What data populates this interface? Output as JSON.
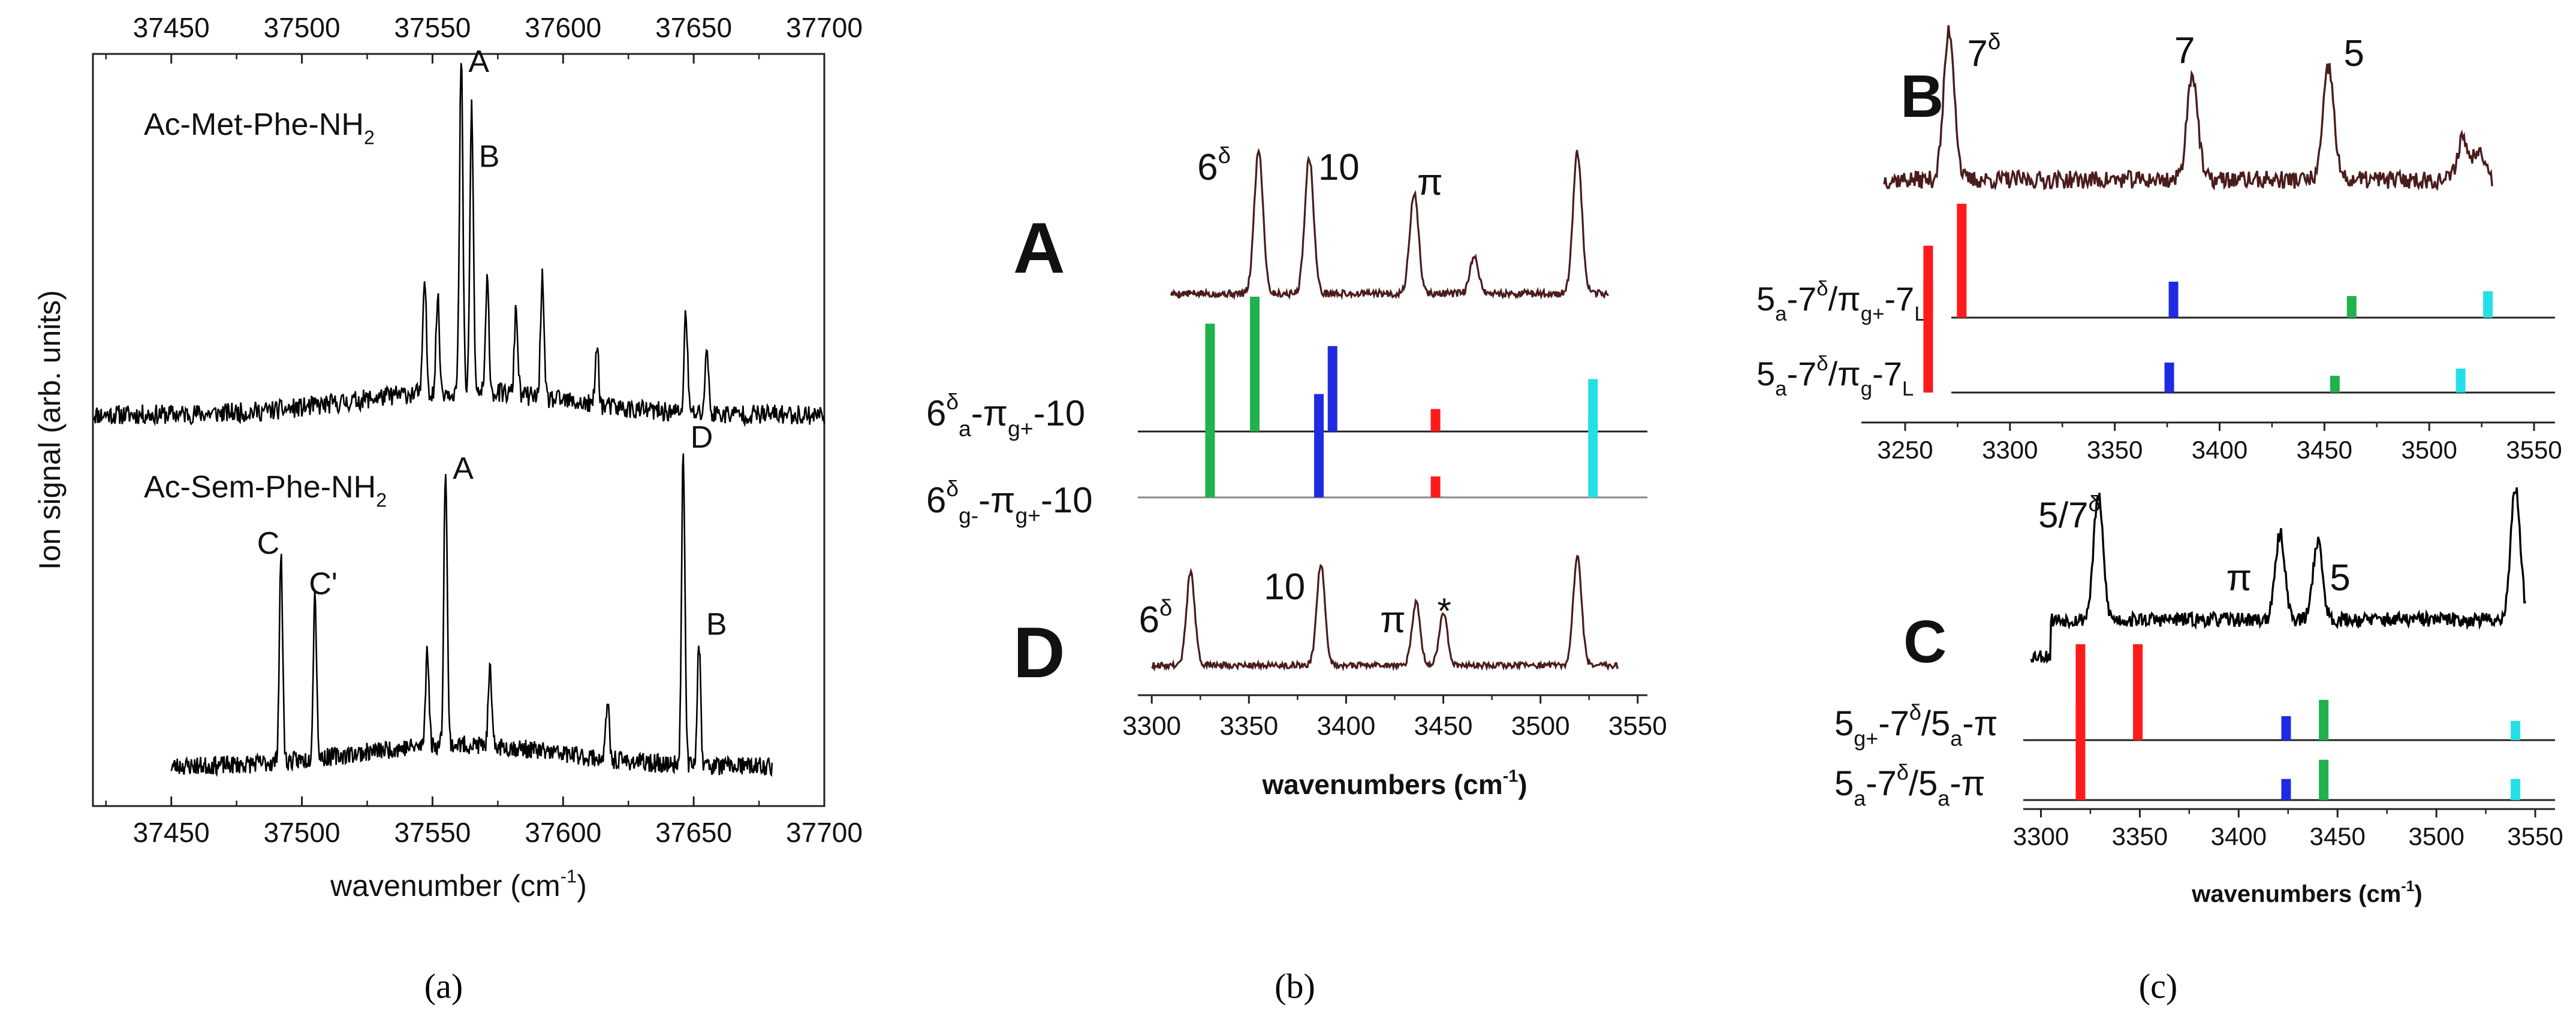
{
  "chart_data": [
    {
      "panel": "a",
      "type": "line",
      "caption": "(a)",
      "xlabel": "wavenumber  (cm-1)",
      "xlabel_parts": [
        "wavenumber  (cm",
        "-1",
        ")"
      ],
      "ylabel": "Ion signal  (arb. units)",
      "xlim": [
        37420,
        37700
      ],
      "xticks": [
        37450,
        37500,
        37550,
        37600,
        37650,
        37700
      ],
      "xtick_labels": [
        "37450",
        "37500",
        "37550",
        "37600",
        "37650",
        "37700"
      ],
      "top_axis_ticks": [
        37450,
        37500,
        37550,
        37600,
        37650,
        37700
      ],
      "top_axis_labels": [
        "37450",
        "37500",
        "37550",
        "37600",
        "37650",
        "37700"
      ],
      "series": [
        {
          "name": "Ac-Met-Phe-NH2",
          "label_parts": [
            "Ac-Met-Phe-NH",
            "2"
          ],
          "x_range": [
            37420,
            37700
          ],
          "baseline": 0.05,
          "peaks": [
            {
              "x": 37547,
              "y": 0.34
            },
            {
              "x": 37552,
              "y": 0.28
            },
            {
              "x": 37561,
              "y": 1.0,
              "label": "A"
            },
            {
              "x": 37565,
              "y": 0.86,
              "label": "B"
            },
            {
              "x": 37571,
              "y": 0.33
            },
            {
              "x": 37582,
              "y": 0.26
            },
            {
              "x": 37592,
              "y": 0.36
            },
            {
              "x": 37613,
              "y": 0.18
            },
            {
              "x": 37647,
              "y": 0.3
            },
            {
              "x": 37655,
              "y": 0.2
            }
          ]
        },
        {
          "name": "Ac-Sem-Phe-NH2",
          "label_parts": [
            "Ac-Sem-Phe-NH",
            "2"
          ],
          "x_range": [
            37450,
            37680
          ],
          "baseline": 0.04,
          "peaks": [
            {
              "x": 37492,
              "y": 0.66,
              "label": "C"
            },
            {
              "x": 37505,
              "y": 0.53,
              "label": "C'"
            },
            {
              "x": 37548,
              "y": 0.32
            },
            {
              "x": 37555,
              "y": 0.9,
              "label": "A"
            },
            {
              "x": 37572,
              "y": 0.24
            },
            {
              "x": 37617,
              "y": 0.18
            },
            {
              "x": 37646,
              "y": 1.0,
              "label": "D"
            },
            {
              "x": 37652,
              "y": 0.4,
              "label": "B"
            }
          ]
        }
      ]
    },
    {
      "panel": "b",
      "type": "line+stick",
      "caption": "(b)",
      "xlabel": "wavenumbers (cm-1)",
      "xlabel_parts": [
        "wavenumbers (cm",
        "-1",
        ")"
      ],
      "xlim": [
        3295,
        3555
      ],
      "xticks": [
        3300,
        3350,
        3400,
        3450,
        3500,
        3550
      ],
      "xtick_labels": [
        "3300",
        "3350",
        "3400",
        "3450",
        "3500",
        "3550"
      ],
      "spectra": [
        {
          "name": "A",
          "x_range": [
            3310,
            3535
          ],
          "peaks": [
            {
              "x": 3355,
              "y": 1.0,
              "label": "6",
              "sup": "δ"
            },
            {
              "x": 3381,
              "y": 0.95,
              "label": "10"
            },
            {
              "x": 3435,
              "y": 0.7,
              "label": "π"
            },
            {
              "x": 3466,
              "y": 0.25
            },
            {
              "x": 3519,
              "y": 0.98
            }
          ]
        },
        {
          "name": "D",
          "x_range": [
            3300,
            3540
          ],
          "peaks": [
            {
              "x": 3320,
              "y": 0.78,
              "label": "6",
              "sup": "δ"
            },
            {
              "x": 3387,
              "y": 0.85,
              "label": "10"
            },
            {
              "x": 3436,
              "y": 0.52,
              "label": "π"
            },
            {
              "x": 3450,
              "y": 0.44,
              "label": "*"
            },
            {
              "x": 3519,
              "y": 0.92
            }
          ]
        }
      ],
      "sticks": [
        {
          "name": "6δa-πg+-10",
          "label": {
            "p1": "6",
            "sup": "δ",
            "sub": "a",
            "p2": "-π",
            "sub2": "g+",
            "p3": "-10"
          },
          "lines": [
            {
              "x": 3330,
              "h": 0.72,
              "color": "#22b14c"
            },
            {
              "x": 3353,
              "h": 0.9,
              "color": "#22b14c"
            },
            {
              "x": 3393,
              "h": 0.57,
              "color": "#1f2be0"
            },
            {
              "x": 3386,
              "h": 0.25,
              "color": "#1f2be0"
            },
            {
              "x": 3446,
              "h": 0.15,
              "color": "#ff1a1a"
            },
            {
              "x": 3527,
              "h": 0.35,
              "color": "#24e0e6"
            }
          ]
        },
        {
          "name": "6δg-πg+-10",
          "label": {
            "p1": "6",
            "sup": "δ",
            "sub": "g-",
            "p2": "-π",
            "sub2": "g+",
            "p3": "-10"
          },
          "lines": [
            {
              "x": 3330,
              "h": 0.5,
              "color": "#22b14c"
            },
            {
              "x": 3386,
              "h": 0.5,
              "color": "#1f2be0"
            },
            {
              "x": 3446,
              "h": 0.14,
              "color": "#ff1a1a"
            },
            {
              "x": 3527,
              "h": 0.5,
              "color": "#24e0e6"
            }
          ]
        }
      ]
    },
    {
      "panel": "c",
      "type": "line+stick",
      "caption": "(c)",
      "subplots": [
        {
          "name": "B",
          "xlim": [
            3230,
            3560
          ],
          "xticks": [
            3250,
            3300,
            3350,
            3400,
            3450,
            3500,
            3550
          ],
          "xtick_labels": [
            "3250",
            "3300",
            "3350",
            "3400",
            "3450",
            "3500",
            "3550"
          ],
          "spectrum": {
            "x_range": [
              3240,
              3530
            ],
            "peaks": [
              {
                "x": 3271,
                "y": 1.0,
                "label": "7",
                "sup": "δ"
              },
              {
                "x": 3387,
                "y": 0.72,
                "label": "7"
              },
              {
                "x": 3452,
                "y": 0.75,
                "label": "5"
              },
              {
                "x": 3516,
                "y": 0.28
              },
              {
                "x": 3524,
                "y": 0.22
              }
            ]
          },
          "sticks": [
            {
              "name": "5a-7δ/πg+-7L",
              "label": {
                "p1": "5",
                "sub": "a",
                "p2": "-7",
                "sup": "δ",
                "p3": "/π",
                "sub2": "g+",
                "p4": "-7",
                "sub3": "L"
              },
              "lines": [
                {
                  "x": 3261,
                  "h": 0.6,
                  "color": "#ff1a1a"
                },
                {
                  "x": 3277,
                  "h": 0.95,
                  "color": "#ff1a1a"
                },
                {
                  "x": 3378,
                  "h": 0.3,
                  "color": "#1f2be0"
                },
                {
                  "x": 3463,
                  "h": 0.18,
                  "color": "#22b14c"
                },
                {
                  "x": 3528,
                  "h": 0.22,
                  "color": "#24e0e6"
                }
              ]
            },
            {
              "name": "5a-7δ/πg-7L",
              "label": {
                "p1": "5",
                "sub": "a",
                "p2": "-7",
                "sup": "δ",
                "p3": "/π",
                "sub2": "g",
                "p4": "-7",
                "sub3": "L"
              },
              "lines": [
                {
                  "x": 3261,
                  "h": 0.95,
                  "color": "#ff1a1a"
                },
                {
                  "x": 3376,
                  "h": 0.25,
                  "color": "#1f2be0"
                },
                {
                  "x": 3455,
                  "h": 0.14,
                  "color": "#22b14c"
                },
                {
                  "x": 3515,
                  "h": 0.2,
                  "color": "#24e0e6"
                }
              ]
            }
          ]
        },
        {
          "name": "C",
          "xlim": [
            3285,
            3560
          ],
          "xticks": [
            3300,
            3350,
            3400,
            3450,
            3500,
            3550
          ],
          "xtick_labels": [
            "3300",
            "3350",
            "3400",
            "3450",
            "3500",
            "3550"
          ],
          "xlabel": "wavenumbers (cm-1)",
          "xlabel_parts": [
            "wavenumbers (cm",
            "-1",
            ")"
          ],
          "spectrum": {
            "x_range": [
              3295,
              3545
            ],
            "peaks": [
              {
                "x": 3329,
                "y": 0.86,
                "label": "5/7",
                "sup": "δ"
              },
              {
                "x": 3421,
                "y": 0.6,
                "label": "π"
              },
              {
                "x": 3440,
                "y": 0.55,
                "label": "5"
              },
              {
                "x": 3540,
                "y": 0.92
              }
            ]
          },
          "sticks": [
            {
              "name": "5g+-7δ/5a-π",
              "label": {
                "p1": "5",
                "sub": "g+",
                "p2": "-7",
                "sup": "δ",
                "p3": "/5",
                "sub2": "a",
                "p4": "-π"
              },
              "lines": [
                {
                  "x": 3320,
                  "h": 1.0,
                  "color": "#ff1a1a"
                },
                {
                  "x": 3349,
                  "h": 1.0,
                  "color": "#ff1a1a"
                },
                {
                  "x": 3424,
                  "h": 0.25,
                  "color": "#1f2be0"
                },
                {
                  "x": 3443,
                  "h": 0.42,
                  "color": "#22b14c"
                },
                {
                  "x": 3540,
                  "h": 0.2,
                  "color": "#24e0e6"
                }
              ]
            },
            {
              "name": "5a-7δ/5a-π",
              "label": {
                "p1": "5",
                "sub": "a",
                "p2": "-7",
                "sup": "δ",
                "p3": "/5",
                "sub2": "a",
                "p4": "-π"
              },
              "lines": [
                {
                  "x": 3320,
                  "h": 1.0,
                  "color": "#ff1a1a"
                },
                {
                  "x": 3424,
                  "h": 0.22,
                  "color": "#1f2be0"
                },
                {
                  "x": 3443,
                  "h": 0.42,
                  "color": "#22b14c"
                },
                {
                  "x": 3540,
                  "h": 0.22,
                  "color": "#24e0e6"
                }
              ]
            }
          ]
        }
      ]
    }
  ],
  "colors": {
    "spectrum_brown": "#4a1c1c",
    "spectrum_black": "#000000",
    "red": "#ff1a1a",
    "green": "#22b14c",
    "blue": "#1f2be0",
    "cyan": "#24e0e6"
  }
}
